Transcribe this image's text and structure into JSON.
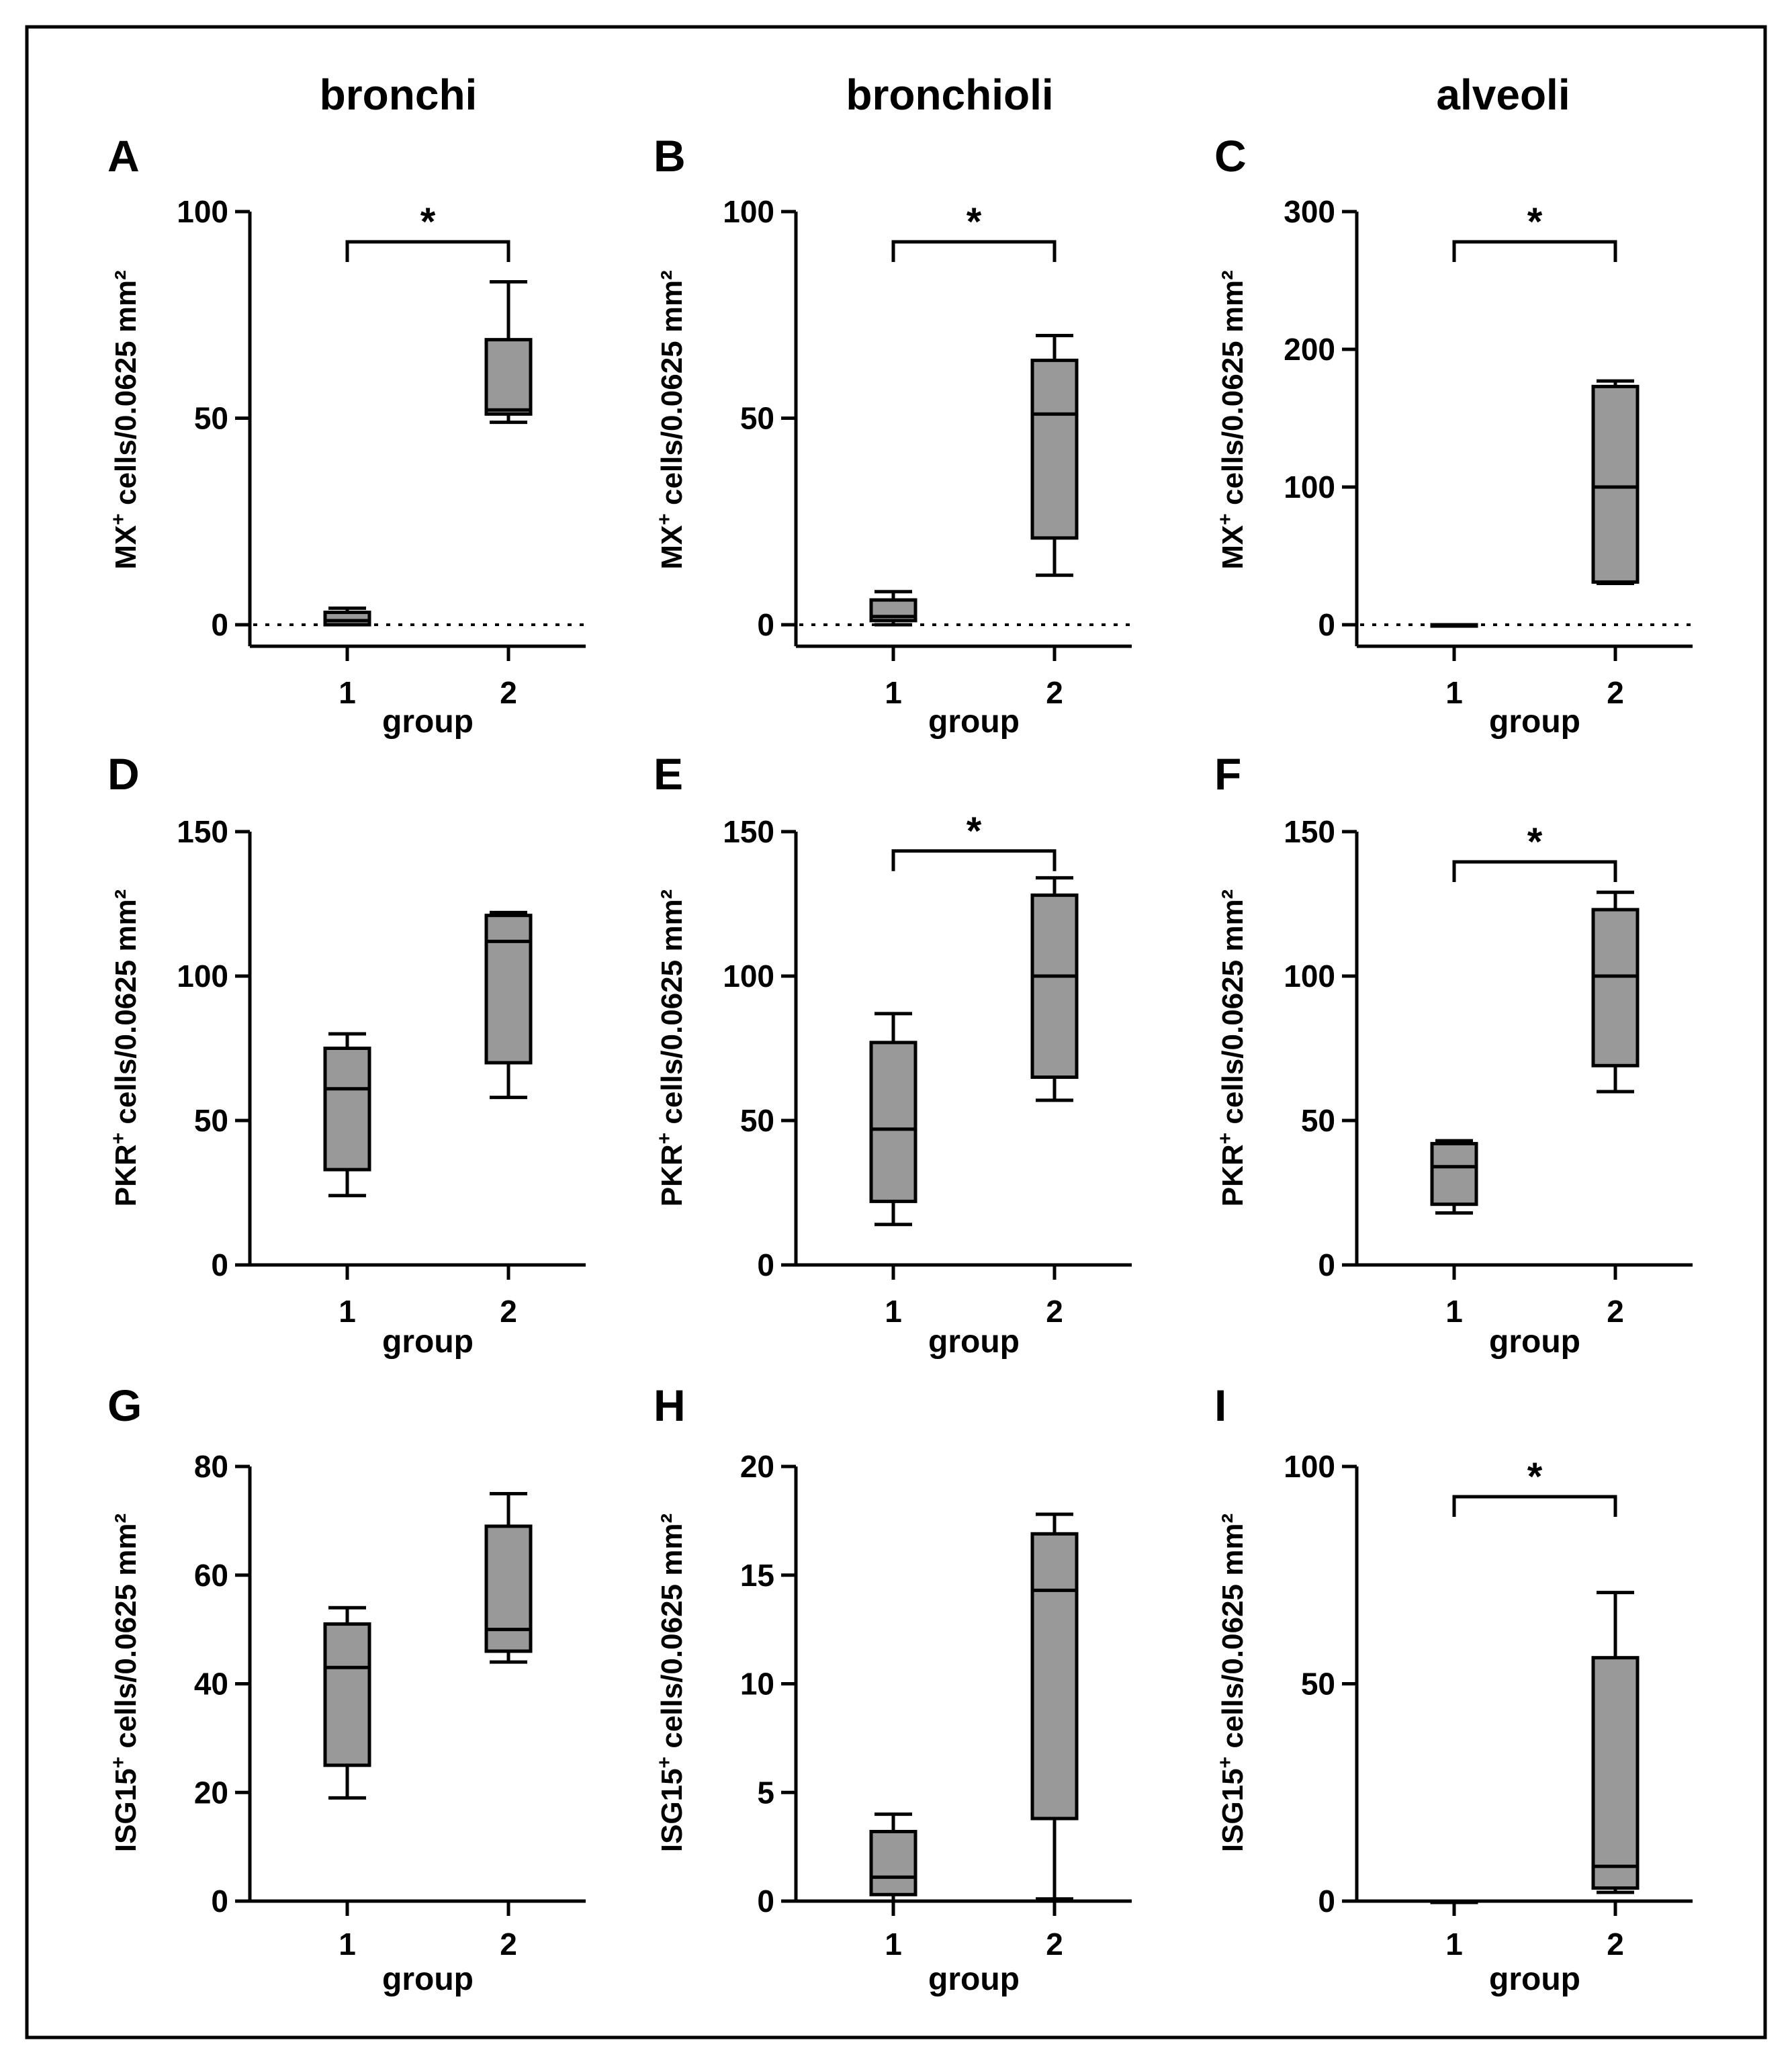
{
  "column_titles": [
    "bronchi",
    "bronchioli",
    "alveoli"
  ],
  "chart_data": [
    {
      "panel": "A",
      "type": "box",
      "ylabel_marker": "MX",
      "ylabel_rest": " cells/0.0625 mm²",
      "ylabel_sup": "+",
      "xlabel": "group",
      "categories": [
        "1",
        "2"
      ],
      "ylim": [
        0,
        100
      ],
      "yticks": [
        0,
        50,
        100
      ],
      "zero_line": true,
      "boxes": [
        {
          "min": 0,
          "q1": 0,
          "median": 1,
          "q3": 3,
          "max": 4
        },
        {
          "min": 49,
          "q1": 51,
          "median": 52,
          "q3": 69,
          "max": 83
        }
      ],
      "significance": "*"
    },
    {
      "panel": "B",
      "type": "box",
      "ylabel_marker": "MX",
      "ylabel_rest": " cells/0.0625 mm²",
      "ylabel_sup": "+",
      "xlabel": "group",
      "categories": [
        "1",
        "2"
      ],
      "ylim": [
        0,
        100
      ],
      "yticks": [
        0,
        50,
        100
      ],
      "zero_line": true,
      "boxes": [
        {
          "min": 0,
          "q1": 1,
          "median": 2,
          "q3": 6,
          "max": 8
        },
        {
          "min": 12,
          "q1": 21,
          "median": 51,
          "q3": 64,
          "max": 70
        }
      ],
      "significance": "*"
    },
    {
      "panel": "C",
      "type": "box",
      "ylabel_marker": "MX",
      "ylabel_rest": " cells/0.0625 mm²",
      "ylabel_sup": "+",
      "xlabel": "group",
      "categories": [
        "1",
        "2"
      ],
      "ylim": [
        0,
        300
      ],
      "yticks": [
        0,
        100,
        200,
        300
      ],
      "zero_line": true,
      "boxes": [
        {
          "min": 0,
          "q1": 0,
          "median": 0,
          "q3": 0,
          "max": 0
        },
        {
          "min": 30,
          "q1": 31,
          "median": 100,
          "q3": 173,
          "max": 177
        }
      ],
      "significance": "*"
    },
    {
      "panel": "D",
      "type": "box",
      "ylabel_marker": "PKR",
      "ylabel_rest": " cells/0.0625 mm²",
      "ylabel_sup": "+",
      "xlabel": "group",
      "categories": [
        "1",
        "2"
      ],
      "ylim": [
        0,
        150
      ],
      "yticks": [
        0,
        50,
        100,
        150
      ],
      "zero_line": false,
      "boxes": [
        {
          "min": 24,
          "q1": 33,
          "median": 61,
          "q3": 75,
          "max": 80
        },
        {
          "min": 58,
          "q1": 70,
          "median": 112,
          "q3": 121,
          "max": 122
        }
      ],
      "significance": ""
    },
    {
      "panel": "E",
      "type": "box",
      "ylabel_marker": "PKR",
      "ylabel_rest": " cells/0.0625 mm²",
      "ylabel_sup": "+",
      "xlabel": "group",
      "categories": [
        "1",
        "2"
      ],
      "ylim": [
        0,
        150
      ],
      "yticks": [
        0,
        50,
        100,
        150
      ],
      "zero_line": false,
      "boxes": [
        {
          "min": 14,
          "q1": 22,
          "median": 47,
          "q3": 77,
          "max": 87
        },
        {
          "min": 57,
          "q1": 65,
          "median": 100,
          "q3": 128,
          "max": 134
        }
      ],
      "significance": "*"
    },
    {
      "panel": "F",
      "type": "box",
      "ylabel_marker": "PKR",
      "ylabel_rest": " cells/0.0625 mm²",
      "ylabel_sup": "+",
      "xlabel": "group",
      "categories": [
        "1",
        "2"
      ],
      "ylim": [
        0,
        150
      ],
      "yticks": [
        0,
        50,
        100,
        150
      ],
      "zero_line": false,
      "boxes": [
        {
          "min": 18,
          "q1": 21,
          "median": 34,
          "q3": 42,
          "max": 43
        },
        {
          "min": 60,
          "q1": 69,
          "median": 100,
          "q3": 123,
          "max": 129
        }
      ],
      "significance": "*"
    },
    {
      "panel": "G",
      "type": "box",
      "ylabel_marker": "ISG15",
      "ylabel_rest": " cells/0.0625 mm²",
      "ylabel_sup": "+",
      "xlabel": "group",
      "categories": [
        "1",
        "2"
      ],
      "ylim": [
        0,
        80
      ],
      "yticks": [
        0,
        20,
        40,
        60,
        80
      ],
      "zero_line": false,
      "boxes": [
        {
          "min": 19,
          "q1": 25,
          "median": 43,
          "q3": 51,
          "max": 54
        },
        {
          "min": 44,
          "q1": 46,
          "median": 50,
          "q3": 69,
          "max": 75
        }
      ],
      "significance": ""
    },
    {
      "panel": "H",
      "type": "box",
      "ylabel_marker": "ISG15",
      "ylabel_rest": " cells/0.0625 mm²",
      "ylabel_sup": "+",
      "xlabel": "group",
      "categories": [
        "1",
        "2"
      ],
      "ylim": [
        0,
        20
      ],
      "yticks": [
        0,
        5,
        10,
        15,
        20
      ],
      "zero_line": true,
      "boxes": [
        {
          "min": 0,
          "q1": 0.3,
          "median": 1.1,
          "q3": 3.2,
          "max": 4
        },
        {
          "min": 0.1,
          "q1": 3.8,
          "median": 14.3,
          "q3": 16.9,
          "max": 17.8
        }
      ],
      "significance": ""
    },
    {
      "panel": "I",
      "type": "box",
      "ylabel_marker": "ISG15",
      "ylabel_rest": " cells/0.0625 mm²",
      "ylabel_sup": "+",
      "xlabel": "group",
      "categories": [
        "1",
        "2"
      ],
      "ylim": [
        0,
        100
      ],
      "yticks": [
        0,
        50,
        100
      ],
      "zero_line": true,
      "boxes": [
        {
          "min": 0,
          "q1": 0,
          "median": 0,
          "q3": 0,
          "max": 0
        },
        {
          "min": 2,
          "q1": 3,
          "median": 8,
          "q3": 56,
          "max": 71
        }
      ],
      "significance": "*"
    }
  ]
}
